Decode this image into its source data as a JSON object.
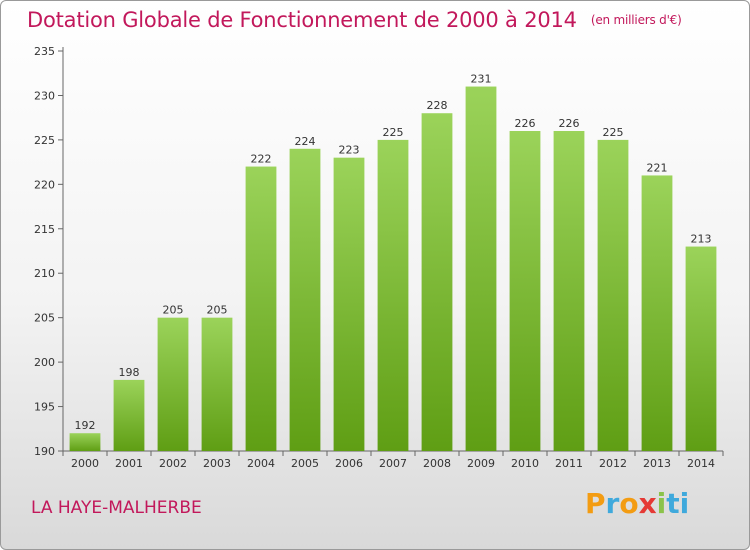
{
  "chart_data": {
    "type": "bar",
    "title": "Dotation Globale de Fonctionnement de 2000 à 2014",
    "unit": "(en milliers d'€)",
    "categories": [
      "2000",
      "2001",
      "2002",
      "2003",
      "2004",
      "2005",
      "2006",
      "2007",
      "2008",
      "2009",
      "2010",
      "2011",
      "2012",
      "2013",
      "2014"
    ],
    "values": [
      192,
      198,
      205,
      205,
      222,
      224,
      223,
      225,
      228,
      231,
      226,
      226,
      225,
      221,
      213
    ],
    "ylim": [
      190,
      235
    ],
    "yticks": [
      190,
      195,
      200,
      205,
      210,
      215,
      220,
      225,
      230,
      235
    ],
    "grid": false,
    "colors": {
      "bar_top": "#9bd35a",
      "bar_bottom": "#5f9e14",
      "title": "#c2185b"
    }
  },
  "footer": {
    "commune": "LA HAYE-MALHERBE",
    "logo_letters": [
      "P",
      "r",
      "o",
      "x",
      "i",
      "ti"
    ]
  }
}
